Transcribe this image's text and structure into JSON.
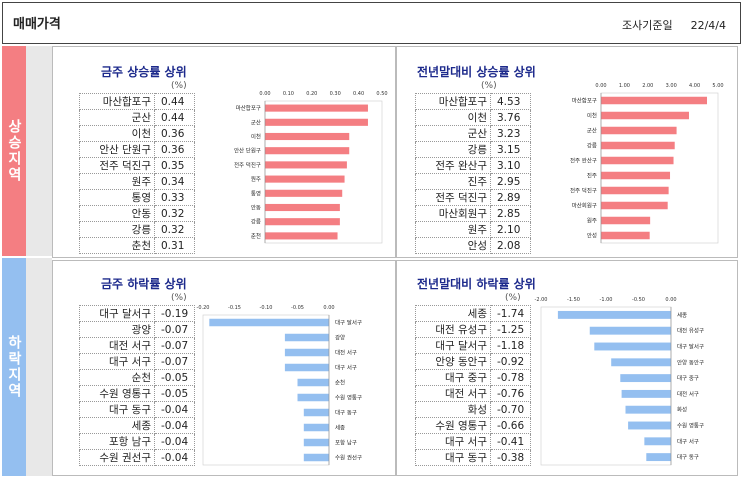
{
  "header": {
    "title": "매매가격",
    "basis_label": "조사기준일",
    "basis_date": "22/4/4"
  },
  "sections": {
    "up_label": "상승지역",
    "down_label": "하락지역"
  },
  "unit": "(%)",
  "colors": {
    "up": "#f47e82",
    "down": "#94bff0",
    "title": "#1d2a8c"
  },
  "panels": [
    {
      "id": "p1",
      "title": "금주 상승률 상위",
      "rows": [
        {
          "name": "마산합포구",
          "value": "0.44"
        },
        {
          "name": "군산",
          "value": "0.44"
        },
        {
          "name": "이천",
          "value": "0.36"
        },
        {
          "name": "안산 단원구",
          "value": "0.36"
        },
        {
          "name": "전주 덕진구",
          "value": "0.35"
        },
        {
          "name": "원주",
          "value": "0.34"
        },
        {
          "name": "통영",
          "value": "0.33"
        },
        {
          "name": "안동",
          "value": "0.32"
        },
        {
          "name": "강릉",
          "value": "0.32"
        },
        {
          "name": "춘천",
          "value": "0.31"
        }
      ]
    },
    {
      "id": "p2",
      "title": "전년말대비 상승률 상위",
      "rows": [
        {
          "name": "마산합포구",
          "value": "4.53"
        },
        {
          "name": "이천",
          "value": "3.76"
        },
        {
          "name": "군산",
          "value": "3.23"
        },
        {
          "name": "강릉",
          "value": "3.15"
        },
        {
          "name": "전주 완산구",
          "value": "3.10"
        },
        {
          "name": "진주",
          "value": "2.95"
        },
        {
          "name": "전주 덕진구",
          "value": "2.89"
        },
        {
          "name": "마산회원구",
          "value": "2.85"
        },
        {
          "name": "원주",
          "value": "2.10"
        },
        {
          "name": "안성",
          "value": "2.08"
        }
      ]
    },
    {
      "id": "p3",
      "title": "금주 하락률 상위",
      "rows": [
        {
          "name": "대구 달서구",
          "value": "-0.19"
        },
        {
          "name": "광양",
          "value": "-0.07"
        },
        {
          "name": "대전 서구",
          "value": "-0.07"
        },
        {
          "name": "대구 서구",
          "value": "-0.07"
        },
        {
          "name": "순천",
          "value": "-0.05"
        },
        {
          "name": "수원 영통구",
          "value": "-0.05"
        },
        {
          "name": "대구 동구",
          "value": "-0.04"
        },
        {
          "name": "세종",
          "value": "-0.04"
        },
        {
          "name": "포항 남구",
          "value": "-0.04"
        },
        {
          "name": "수원 권선구",
          "value": "-0.04"
        }
      ]
    },
    {
      "id": "p4",
      "title": "전년말대비 하락률 상위",
      "rows": [
        {
          "name": "세종",
          "value": "-1.74"
        },
        {
          "name": "대전 유성구",
          "value": "-1.25"
        },
        {
          "name": "대구 달서구",
          "value": "-1.18"
        },
        {
          "name": "안양 동안구",
          "value": "-0.92"
        },
        {
          "name": "대구 중구",
          "value": "-0.78"
        },
        {
          "name": "대전 서구",
          "value": "-0.76"
        },
        {
          "name": "화성",
          "value": "-0.70"
        },
        {
          "name": "수원 영통구",
          "value": "-0.66"
        },
        {
          "name": "대구 서구",
          "value": "-0.41"
        },
        {
          "name": "대구 동구",
          "value": "-0.38"
        }
      ]
    }
  ],
  "chart_data": [
    {
      "type": "bar",
      "panel": "p1",
      "xlim": [
        0,
        0.5
      ],
      "ticks": [
        "0.00",
        "0.10",
        "0.20",
        "0.30",
        "0.40",
        "0.50"
      ],
      "color": "#f47e82",
      "categories": [
        "마산합포구",
        "군산",
        "이천",
        "안산 단원구",
        "전주 덕진구",
        "원주",
        "통영",
        "안동",
        "강릉",
        "춘천"
      ],
      "values": [
        0.44,
        0.44,
        0.36,
        0.36,
        0.35,
        0.34,
        0.33,
        0.32,
        0.32,
        0.31
      ]
    },
    {
      "type": "bar",
      "panel": "p2",
      "xlim": [
        0,
        5
      ],
      "ticks": [
        "0.00",
        "1.00",
        "2.00",
        "3.00",
        "4.00",
        "5.00"
      ],
      "color": "#f47e82",
      "categories": [
        "마산합포구",
        "이천",
        "군산",
        "강릉",
        "전주 완산구",
        "진주",
        "전주 덕진구",
        "마산회원구",
        "원주",
        "안성"
      ],
      "values": [
        4.53,
        3.76,
        3.23,
        3.15,
        3.1,
        2.95,
        2.89,
        2.85,
        2.1,
        2.08
      ]
    },
    {
      "type": "bar",
      "panel": "p3",
      "xlim": [
        -0.2,
        0
      ],
      "ticks": [
        "-0.20",
        "-0.15",
        "-0.10",
        "-0.05",
        "0.00"
      ],
      "color": "#94bff0",
      "categories": [
        "대구 달서구",
        "광양",
        "대전 서구",
        "대구 서구",
        "순천",
        "수원 영통구",
        "대구 동구",
        "세종",
        "포항 남구",
        "수원 권선구"
      ],
      "values": [
        -0.19,
        -0.07,
        -0.07,
        -0.07,
        -0.05,
        -0.05,
        -0.04,
        -0.04,
        -0.04,
        -0.04
      ]
    },
    {
      "type": "bar",
      "panel": "p4",
      "xlim": [
        -2,
        0
      ],
      "ticks": [
        "-2.00",
        "-1.50",
        "-1.00",
        "-0.50",
        "0.00"
      ],
      "color": "#94bff0",
      "categories": [
        "세종",
        "대전 유성구",
        "대구 달서구",
        "안양 동안구",
        "대구 중구",
        "대전 서구",
        "화성",
        "수원 영통구",
        "대구 서구",
        "대구 동구"
      ],
      "values": [
        -1.74,
        -1.25,
        -1.18,
        -0.92,
        -0.78,
        -0.76,
        -0.7,
        -0.66,
        -0.41,
        -0.38
      ]
    }
  ]
}
